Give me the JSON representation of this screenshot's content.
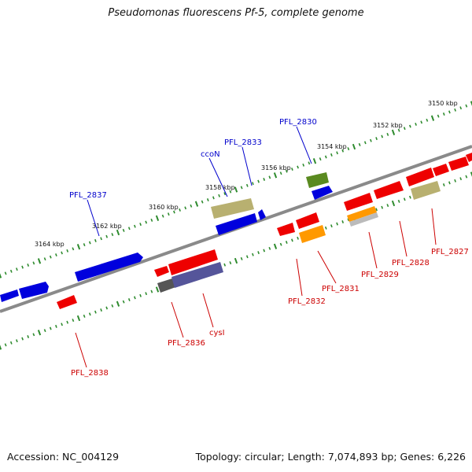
{
  "title": "Pseudomonas fluorescens Pf-5, complete genome",
  "footer": {
    "accession": "Accession: NC_004129",
    "topology": "Topology: circular; Length: 7,074,893 bp; Genes: 6,226"
  },
  "colors": {
    "backbone": "#8a8a8a",
    "ticks": "#2e8b2e",
    "label_top": "#0000cc",
    "label_bottom": "#cc0000",
    "gene_blue": "#0000dd",
    "gene_red": "#ee0000",
    "gene_olive": "#b8b070",
    "gene_dark_olive": "#5a8a20",
    "gene_orange": "#ff9900",
    "gene_purple": "#55559a",
    "gene_grey": "#bbbbbb"
  },
  "scale_labels": [
    "3150 kbp",
    "3152 kbp",
    "3154 kbp",
    "3156 kbp",
    "3158 kbp",
    "3160 kbp",
    "3162 kbp",
    "3164 kbp"
  ],
  "gene_labels_top": [
    "PFL_2830",
    "PFL_2833",
    "ccoN",
    "PFL_2837"
  ],
  "gene_labels_bottom": [
    "PFL_2827",
    "PFL_2828",
    "PFL_2829",
    "PFL_2831",
    "PFL_2832",
    "PFL_2836",
    "cysI",
    "PFL_2838"
  ]
}
